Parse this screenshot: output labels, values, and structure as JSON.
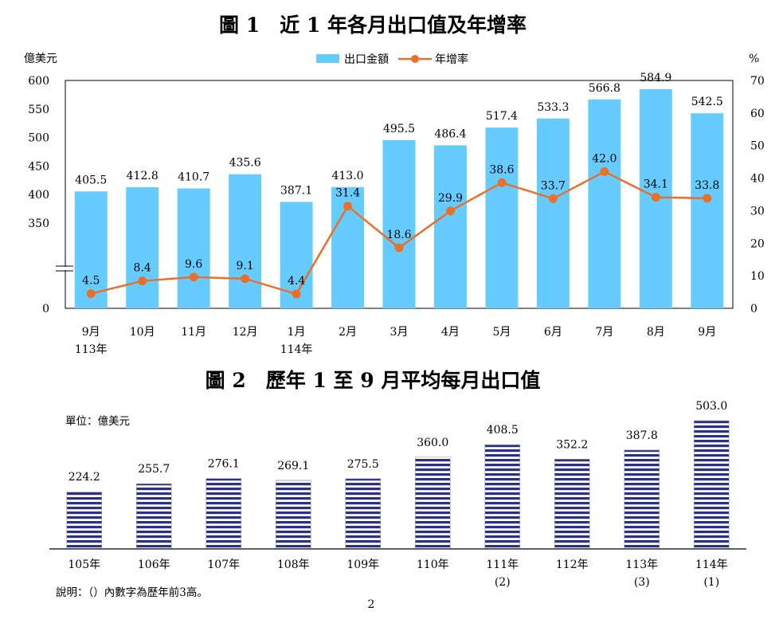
{
  "page_number": "2",
  "chart_data": [
    {
      "type": "bar+line",
      "title": "圖 1　近 1 年各月出口值及年增率",
      "y_left_unit": "億美元",
      "y_right_unit": "%",
      "y_left_ticks": [
        "0",
        "350",
        "400",
        "450",
        "500",
        "550",
        "600"
      ],
      "y_right_ticks": [
        "0",
        "10",
        "20",
        "30",
        "40",
        "50",
        "60",
        "70"
      ],
      "y_left_break": true,
      "ylim_right": [
        0,
        70
      ],
      "legend": {
        "bar": "出口金額",
        "line": "年增率"
      },
      "colors": {
        "bar": "#66ccff",
        "line": "#e8702a",
        "line_marker": "#e8702a"
      },
      "categories": [
        {
          "month": "9月",
          "year": "113年"
        },
        {
          "month": "10月",
          "year": ""
        },
        {
          "month": "11月",
          "year": ""
        },
        {
          "month": "12月",
          "year": ""
        },
        {
          "month": "1月",
          "year": "114年"
        },
        {
          "month": "2月",
          "year": ""
        },
        {
          "month": "3月",
          "year": ""
        },
        {
          "month": "4月",
          "year": ""
        },
        {
          "month": "5月",
          "year": ""
        },
        {
          "month": "6月",
          "year": ""
        },
        {
          "month": "7月",
          "year": ""
        },
        {
          "month": "8月",
          "year": ""
        },
        {
          "month": "9月",
          "year": ""
        }
      ],
      "export_value": [
        405.5,
        412.8,
        410.7,
        435.6,
        387.1,
        413.0,
        495.5,
        486.4,
        517.4,
        533.3,
        566.8,
        584.9,
        542.5
      ],
      "export_value_labels": [
        "405.5",
        "412.8",
        "410.7",
        "435.6",
        "387.1",
        "413.0",
        "495.5",
        "486.4",
        "517.4",
        "533.3",
        "566.8",
        "584.9",
        "542.5"
      ],
      "yoy_growth": [
        4.5,
        8.4,
        9.6,
        9.1,
        4.4,
        31.4,
        18.6,
        29.9,
        38.6,
        33.7,
        42.0,
        34.1,
        33.8
      ],
      "yoy_growth_labels": [
        "4.5",
        "8.4",
        "9.6",
        "9.1",
        "4.4",
        "31.4",
        "18.6",
        "29.9",
        "38.6",
        "33.7",
        "42.0",
        "34.1",
        "33.8"
      ]
    },
    {
      "type": "bar",
      "title": "圖 2　歷年 1 至 9 月平均每月出口值",
      "unit_label": "單位：億美元",
      "colors": {
        "bar_stripe": "#2b3380",
        "bar_gap": "#ffffff"
      },
      "categories": [
        {
          "year": "105年",
          "rank": ""
        },
        {
          "year": "106年",
          "rank": ""
        },
        {
          "year": "107年",
          "rank": ""
        },
        {
          "year": "108年",
          "rank": ""
        },
        {
          "year": "109年",
          "rank": ""
        },
        {
          "year": "110年",
          "rank": ""
        },
        {
          "year": "111年",
          "rank": "(2)"
        },
        {
          "year": "112年",
          "rank": ""
        },
        {
          "year": "113年",
          "rank": "(3)"
        },
        {
          "year": "114年",
          "rank": "(1)"
        }
      ],
      "values": [
        224.2,
        255.7,
        276.1,
        269.1,
        275.5,
        360.0,
        408.5,
        352.2,
        387.8,
        503.0
      ],
      "value_labels": [
        "224.2",
        "255.7",
        "276.1",
        "269.1",
        "275.5",
        "360.0",
        "408.5",
        "352.2",
        "387.8",
        "503.0"
      ],
      "note": "說明：（）內數字為歷年前3高。"
    }
  ]
}
